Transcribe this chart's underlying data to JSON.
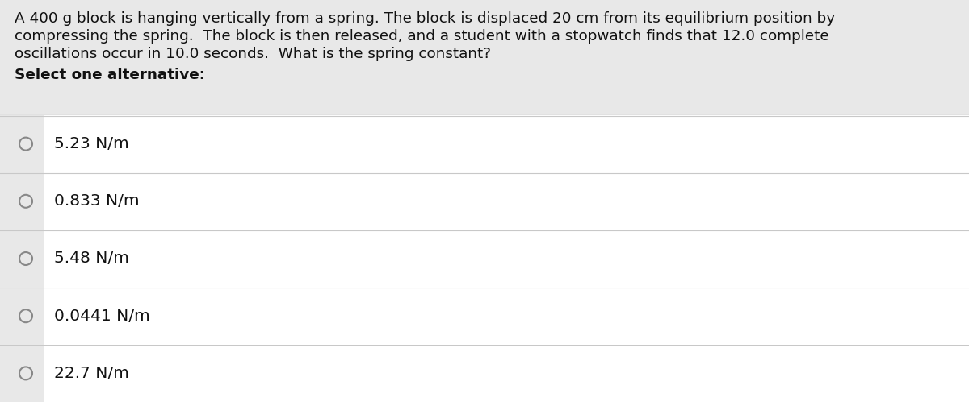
{
  "question_text_line1": "A 400 g block is hanging vertically from a spring. The block is displaced 20 cm from its equilibrium position by",
  "question_text_line2": "compressing the spring.  The block is then released, and a student with a stopwatch finds that 12.0 complete",
  "question_text_line3": "oscillations occur in 10.0 seconds.  What is the spring constant?",
  "bold_label": "Select one alternative:",
  "options": [
    "5.23 N/m",
    "0.833 N/m",
    "5.48 N/m",
    "0.0441 N/m",
    "22.7 N/m"
  ],
  "bg_question": "#e8e8e8",
  "bg_option": "#ffffff",
  "left_strip_color": "#d0d0d0",
  "divider_color": "#c8c8c8",
  "text_color": "#111111",
  "circle_edge_color": "#888888",
  "question_fontsize": 13.2,
  "bold_fontsize": 13.2,
  "option_fontsize": 14.5,
  "fig_width": 12.0,
  "fig_height": 4.99,
  "dpi": 100
}
